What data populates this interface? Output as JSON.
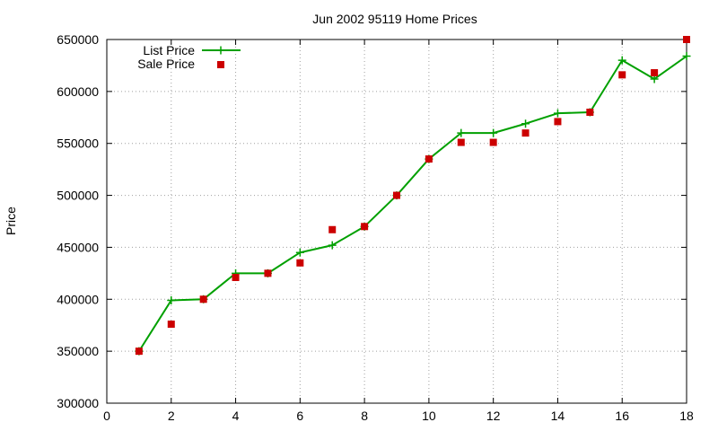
{
  "chart_data": {
    "type": "line",
    "title": "Jun 2002 95119 Home Prices",
    "xlabel": "",
    "ylabel": "Price",
    "xlim": [
      0,
      18
    ],
    "ylim": [
      300000,
      650000
    ],
    "xticks": [
      0,
      2,
      4,
      6,
      8,
      10,
      12,
      14,
      16,
      18
    ],
    "yticks": [
      300000,
      350000,
      400000,
      450000,
      500000,
      550000,
      600000,
      650000
    ],
    "grid": true,
    "legend_position": "top-left",
    "series": [
      {
        "name": "List Price",
        "style": "line-with-plus-markers",
        "color": "#00a000",
        "x": [
          1,
          2,
          3,
          4,
          5,
          6,
          7,
          8,
          9,
          10,
          11,
          12,
          13,
          14,
          15,
          16,
          17,
          18
        ],
        "values": [
          350000,
          399000,
          400000,
          425000,
          425000,
          445000,
          452000,
          470000,
          500000,
          535000,
          560000,
          560000,
          569000,
          579000,
          580000,
          630000,
          612000,
          634000
        ]
      },
      {
        "name": "Sale Price",
        "style": "square-markers",
        "color": "#cc0000",
        "x": [
          1,
          2,
          3,
          4,
          5,
          6,
          7,
          8,
          9,
          10,
          11,
          12,
          13,
          14,
          15,
          16,
          17,
          18
        ],
        "values": [
          350000,
          376000,
          400000,
          421000,
          425000,
          435000,
          467000,
          470000,
          500000,
          535000,
          551000,
          551000,
          560000,
          571000,
          580000,
          616000,
          618000,
          650000
        ]
      }
    ]
  }
}
